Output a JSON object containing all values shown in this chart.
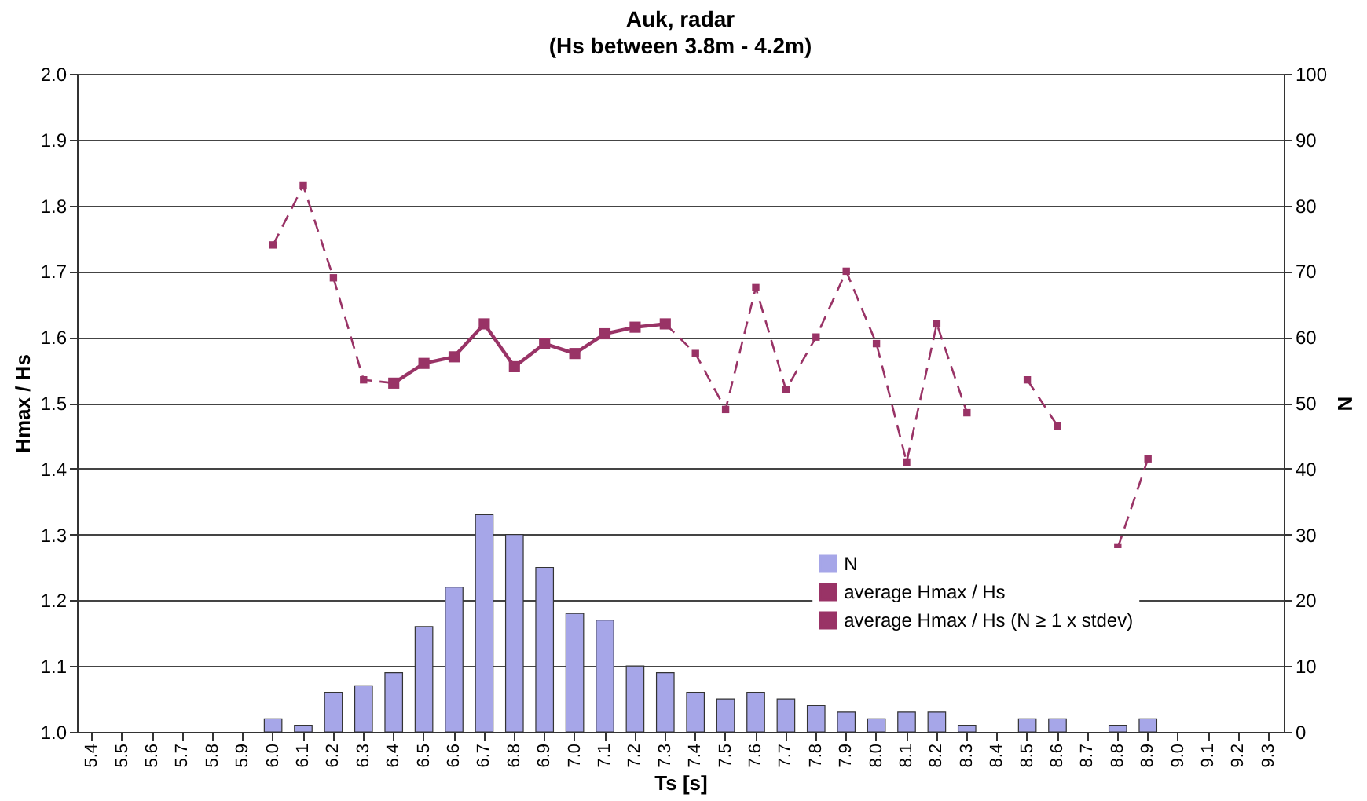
{
  "chart_data": {
    "type": "bar",
    "title": "Auk, radar",
    "subtitle": "(Hs between 3.8m - 4.2m)",
    "xlabel": "Ts [s]",
    "ylabel": "Hmax / Hs",
    "y2label": "N",
    "categories": [
      "5.4",
      "5.5",
      "5.6",
      "5.7",
      "5.8",
      "5.9",
      "6.0",
      "6.1",
      "6.2",
      "6.3",
      "6.4",
      "6.5",
      "6.6",
      "6.7",
      "6.8",
      "6.9",
      "7.0",
      "7.1",
      "7.2",
      "7.3",
      "7.4",
      "7.5",
      "7.6",
      "7.7",
      "7.8",
      "7.9",
      "8.0",
      "8.1",
      "8.2",
      "8.3",
      "8.4",
      "8.5",
      "8.6",
      "8.7",
      "8.8",
      "8.9",
      "9.0",
      "9.1",
      "9.2",
      "9.3"
    ],
    "series": [
      {
        "name": "N",
        "axis": "y2",
        "color": "#a6a6e8",
        "values": [
          null,
          null,
          null,
          null,
          null,
          null,
          2,
          1,
          6,
          7,
          9,
          16,
          22,
          33,
          30,
          25,
          18,
          17,
          10,
          9,
          6,
          5,
          6,
          5,
          4,
          3,
          2,
          3,
          3,
          1,
          null,
          2,
          2,
          null,
          1,
          2,
          null,
          null,
          null,
          null
        ]
      },
      {
        "name": "average Hmax / Hs",
        "type": "line",
        "line_style": "dashed",
        "marker": "square",
        "color": "#993366",
        "values": [
          null,
          null,
          null,
          null,
          null,
          null,
          1.74,
          1.83,
          1.69,
          1.535,
          1.53,
          null,
          null,
          null,
          null,
          null,
          null,
          null,
          null,
          1.62,
          1.575,
          1.49,
          1.675,
          1.52,
          1.6,
          1.7,
          1.59,
          1.41,
          1.62,
          1.485,
          null,
          1.535,
          1.465,
          null,
          1.28,
          1.415,
          null,
          null,
          null,
          null
        ]
      },
      {
        "name": "average Hmax / Hs (N ≥ 1 x stdev)",
        "type": "line",
        "line_style": "solid",
        "marker": "square",
        "color": "#993366",
        "values": [
          null,
          null,
          null,
          null,
          null,
          null,
          null,
          null,
          null,
          null,
          1.53,
          1.56,
          1.57,
          1.62,
          1.555,
          1.59,
          1.575,
          1.605,
          1.615,
          1.62,
          null,
          null,
          null,
          null,
          null,
          null,
          null,
          null,
          null,
          null,
          null,
          null,
          null,
          null,
          null,
          null,
          null,
          null,
          null,
          null
        ]
      }
    ],
    "ylim": [
      1,
      2
    ],
    "yticks": [
      {
        "value": 1,
        "label": "1.0"
      },
      1.1,
      1.2,
      1.3,
      1.4,
      1.5,
      1.6,
      1.7,
      1.8,
      1.9,
      {
        "value": 2,
        "label": "2.0"
      }
    ],
    "y2lim": [
      0,
      100
    ],
    "y2ticks": [
      0,
      10,
      20,
      30,
      40,
      50,
      60,
      70,
      80,
      90,
      100
    ],
    "grid": "y",
    "legend": "bottom right"
  }
}
